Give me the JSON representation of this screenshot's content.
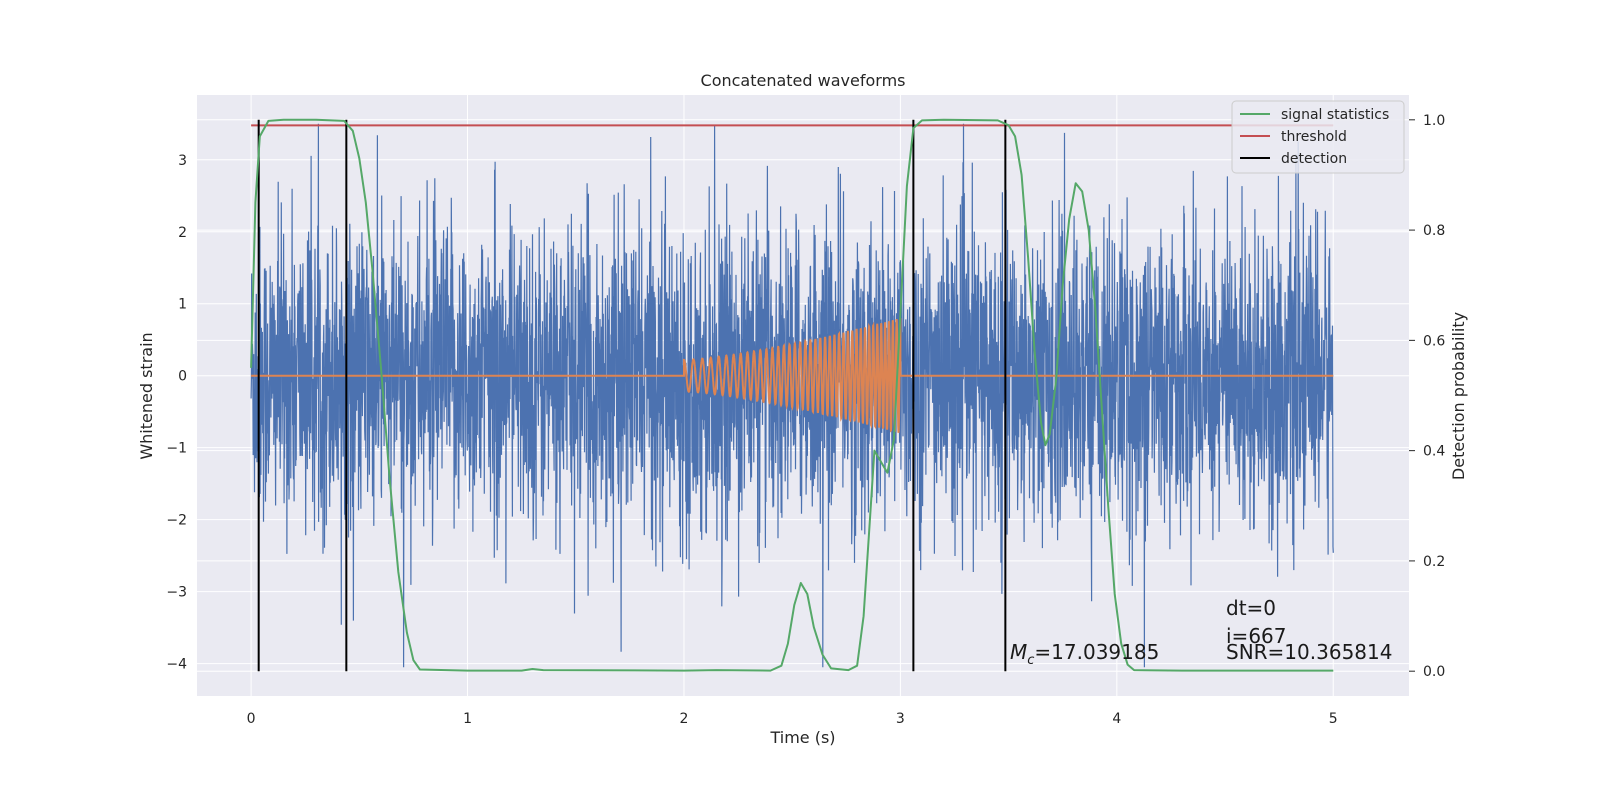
{
  "chart_data": {
    "type": "line",
    "title": "Concatenated waveforms",
    "xlabel": "Time (s)",
    "ylabel": "Whitened strain",
    "y2label": "Detection probability",
    "xlim": [
      -0.25,
      5.35
    ],
    "ylim": [
      -4.45,
      3.9
    ],
    "y2lim": [
      -0.045,
      1.045
    ],
    "xticks": [
      0,
      1,
      2,
      3,
      4,
      5
    ],
    "yticks": [
      -4,
      -3,
      -2,
      -1,
      0,
      1,
      2,
      3
    ],
    "y2ticks": [
      0.0,
      0.2,
      0.4,
      0.6,
      0.8,
      1.0
    ],
    "grid": true,
    "legend_position": "top-right",
    "colors": {
      "noise": "#4c72b0",
      "template": "#dd8452",
      "signal": "#55a868",
      "threshold": "#c44e52",
      "detection": "#000000",
      "background": "#eaeaf2",
      "grid": "#ffffff"
    },
    "noise": {
      "x_range": [
        0,
        5
      ],
      "y_range": [
        -4.05,
        3.5
      ],
      "typical_amplitude": 1.2
    },
    "template": {
      "axis": "left",
      "start": 2.0,
      "end": 3.0,
      "amplitude_start": 0.22,
      "amplitude_end": 0.8,
      "flat_value": 0,
      "x_range": [
        0,
        5
      ]
    },
    "series": [
      {
        "name": "signal statistics",
        "axis": "right",
        "points": [
          [
            0.0,
            0.55
          ],
          [
            0.02,
            0.85
          ],
          [
            0.04,
            0.97
          ],
          [
            0.08,
            0.998
          ],
          [
            0.15,
            1.0
          ],
          [
            0.3,
            1.0
          ],
          [
            0.43,
            0.998
          ],
          [
            0.47,
            0.98
          ],
          [
            0.5,
            0.93
          ],
          [
            0.53,
            0.85
          ],
          [
            0.56,
            0.73
          ],
          [
            0.6,
            0.55
          ],
          [
            0.64,
            0.35
          ],
          [
            0.68,
            0.18
          ],
          [
            0.72,
            0.07
          ],
          [
            0.75,
            0.02
          ],
          [
            0.78,
            0.003
          ],
          [
            1.0,
            0.001
          ],
          [
            1.25,
            0.001
          ],
          [
            1.3,
            0.004
          ],
          [
            1.35,
            0.002
          ],
          [
            2.0,
            0.001
          ],
          [
            2.15,
            0.002
          ],
          [
            2.4,
            0.001
          ],
          [
            2.45,
            0.01
          ],
          [
            2.48,
            0.05
          ],
          [
            2.51,
            0.12
          ],
          [
            2.54,
            0.16
          ],
          [
            2.57,
            0.14
          ],
          [
            2.6,
            0.08
          ],
          [
            2.64,
            0.03
          ],
          [
            2.68,
            0.005
          ],
          [
            2.76,
            0.002
          ],
          [
            2.8,
            0.01
          ],
          [
            2.83,
            0.1
          ],
          [
            2.86,
            0.28
          ],
          [
            2.88,
            0.4
          ],
          [
            2.91,
            0.38
          ],
          [
            2.94,
            0.36
          ],
          [
            2.97,
            0.42
          ],
          [
            3.0,
            0.65
          ],
          [
            3.03,
            0.88
          ],
          [
            3.06,
            0.985
          ],
          [
            3.1,
            0.999
          ],
          [
            3.2,
            1.0
          ],
          [
            3.45,
            0.999
          ],
          [
            3.5,
            0.99
          ],
          [
            3.53,
            0.97
          ],
          [
            3.56,
            0.9
          ],
          [
            3.59,
            0.75
          ],
          [
            3.62,
            0.58
          ],
          [
            3.65,
            0.45
          ],
          [
            3.67,
            0.41
          ],
          [
            3.69,
            0.43
          ],
          [
            3.72,
            0.53
          ],
          [
            3.75,
            0.7
          ],
          [
            3.78,
            0.82
          ],
          [
            3.81,
            0.885
          ],
          [
            3.84,
            0.87
          ],
          [
            3.87,
            0.8
          ],
          [
            3.9,
            0.66
          ],
          [
            3.93,
            0.48
          ],
          [
            3.96,
            0.3
          ],
          [
            3.99,
            0.14
          ],
          [
            4.02,
            0.05
          ],
          [
            4.05,
            0.012
          ],
          [
            4.08,
            0.002
          ],
          [
            4.3,
            0.001
          ],
          [
            5.0,
            0.001
          ]
        ]
      },
      {
        "name": "threshold",
        "axis": "right",
        "points": [
          [
            0,
            0.99
          ],
          [
            5,
            0.99
          ]
        ]
      },
      {
        "name": "detection",
        "axis": "right",
        "type": "vlines",
        "x": [
          0.035,
          0.44,
          3.06,
          3.485
        ],
        "ymin": 0.0,
        "ymax": 1.0
      }
    ],
    "annotations": {
      "mc_label": "M",
      "mc_sub": "c",
      "mc_value": "=17.039185",
      "dt": "dt=0",
      "i": "i=667",
      "snr": "SNR=10.365814"
    }
  }
}
